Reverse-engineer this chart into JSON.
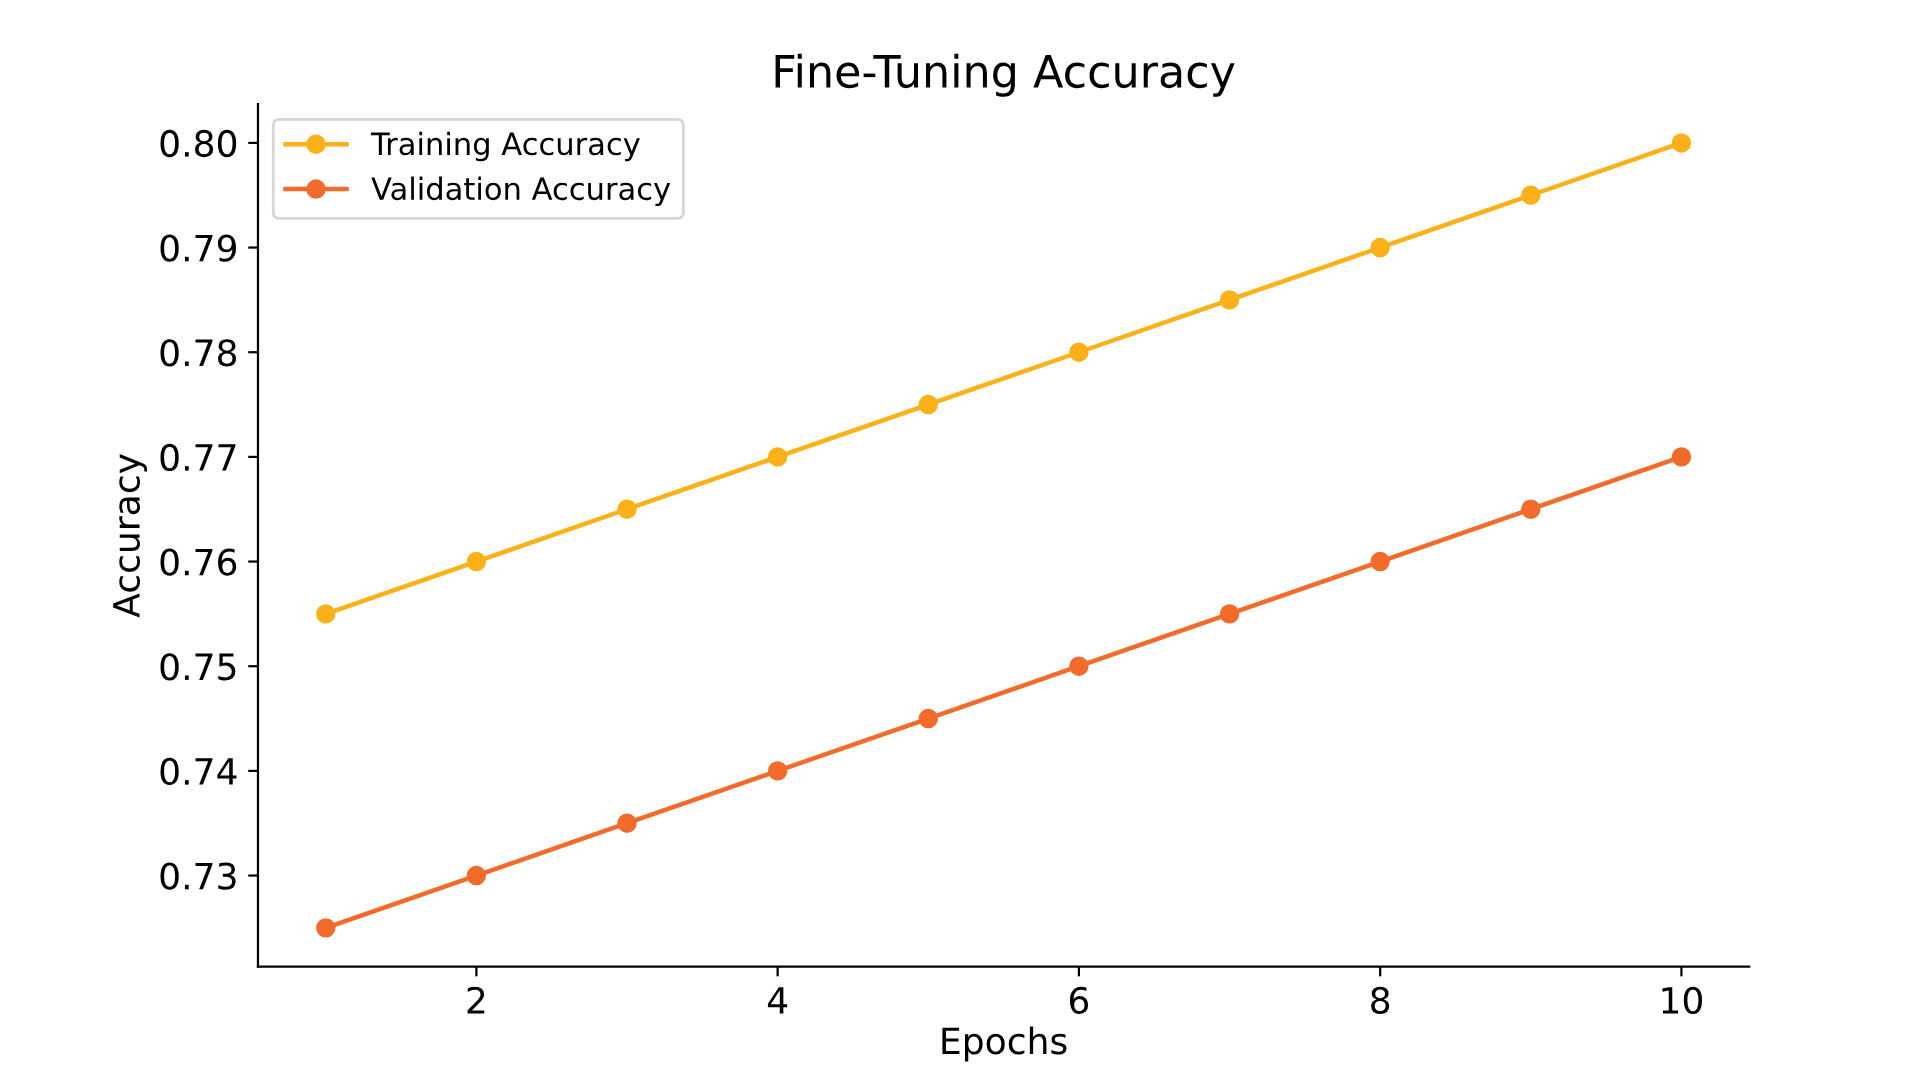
{
  "chart_data": {
    "type": "line",
    "title": "Fine-Tuning Accuracy",
    "xlabel": "Epochs",
    "ylabel": "Accuracy",
    "x": [
      1,
      2,
      3,
      4,
      5,
      6,
      7,
      8,
      9,
      10
    ],
    "series": [
      {
        "name": "Training Accuracy",
        "color": "#fbb117",
        "values": [
          0.755,
          0.76,
          0.765,
          0.77,
          0.775,
          0.78,
          0.785,
          0.79,
          0.795,
          0.8
        ]
      },
      {
        "name": "Validation Accuracy",
        "color": "#f26b2a",
        "values": [
          0.725,
          0.73,
          0.735,
          0.74,
          0.745,
          0.75,
          0.755,
          0.76,
          0.765,
          0.77
        ]
      }
    ],
    "xlim": [
      0.55,
      10.45
    ],
    "xticks": [
      2,
      4,
      6,
      8,
      10
    ],
    "ylim": [
      0.7213,
      0.8037
    ],
    "yticks": [
      0.73,
      0.74,
      0.75,
      0.76,
      0.77,
      0.78,
      0.79,
      {
        "value": 0.8,
        "label": "0.80"
      }
    ],
    "marker": "circle",
    "line_style": "solid",
    "legend": "top left",
    "grid": false
  }
}
